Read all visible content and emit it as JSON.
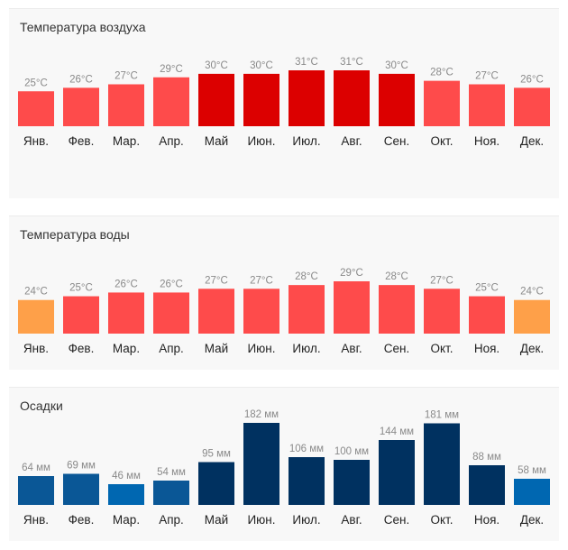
{
  "colors": {
    "hot": "#fe4b4b",
    "very_hot": "#dc0000",
    "warm": "#fea049",
    "rain_low": "#0067b1",
    "rain_mid": "#0a5796",
    "rain_high": "#003160"
  },
  "chart_data": [
    {
      "type": "bar",
      "title": "Температура воздуха",
      "categories": [
        "Янв.",
        "Фев.",
        "Мар.",
        "Апр.",
        "Май",
        "Июн.",
        "Июл.",
        "Авг.",
        "Сен.",
        "Окт.",
        "Ноя.",
        "Дек."
      ],
      "values": [
        25,
        26,
        27,
        29,
        30,
        30,
        31,
        31,
        30,
        28,
        27,
        26
      ],
      "value_labels": [
        "25°C",
        "26°C",
        "27°C",
        "29°C",
        "30°C",
        "30°C",
        "31°C",
        "31°C",
        "30°C",
        "28°C",
        "27°C",
        "26°C"
      ],
      "unit": "°C",
      "ylim": [
        15,
        31
      ],
      "bar_colors": [
        "#fe4b4b",
        "#fe4b4b",
        "#fe4b4b",
        "#fe4b4b",
        "#dc0000",
        "#dc0000",
        "#dc0000",
        "#dc0000",
        "#dc0000",
        "#fe4b4b",
        "#fe4b4b",
        "#fe4b4b"
      ]
    },
    {
      "type": "bar",
      "title": "Температура воды",
      "categories": [
        "Янв.",
        "Фев.",
        "Мар.",
        "Апр.",
        "Май",
        "Июн.",
        "Июл.",
        "Авг.",
        "Сен.",
        "Окт.",
        "Ноя.",
        "Дек."
      ],
      "values": [
        24,
        25,
        26,
        26,
        27,
        27,
        28,
        29,
        28,
        27,
        25,
        24
      ],
      "value_labels": [
        "24°C",
        "25°C",
        "26°C",
        "26°C",
        "27°C",
        "27°C",
        "28°C",
        "29°C",
        "28°C",
        "27°C",
        "25°C",
        "24°C"
      ],
      "unit": "°C",
      "ylim": [
        15,
        29
      ],
      "bar_colors": [
        "#fea049",
        "#fe4b4b",
        "#fe4b4b",
        "#fe4b4b",
        "#fe4b4b",
        "#fe4b4b",
        "#fe4b4b",
        "#fe4b4b",
        "#fe4b4b",
        "#fe4b4b",
        "#fe4b4b",
        "#fea049"
      ]
    },
    {
      "type": "bar",
      "title": "Осадки",
      "categories": [
        "Янв.",
        "Фев.",
        "Мар.",
        "Апр.",
        "Май",
        "Июн.",
        "Июл.",
        "Авг.",
        "Сен.",
        "Окт.",
        "Ноя.",
        "Дек."
      ],
      "values": [
        64,
        69,
        46,
        54,
        95,
        182,
        106,
        100,
        144,
        181,
        88,
        58
      ],
      "value_labels": [
        "64 мм",
        "69 мм",
        "46 мм",
        "54 мм",
        "95 мм",
        "182 мм",
        "106 мм",
        "100 мм",
        "144 мм",
        "181 мм",
        "88 мм",
        "58 мм"
      ],
      "unit": "мм",
      "ylim": [
        0,
        182
      ],
      "bar_colors": [
        "#0a5796",
        "#0a5796",
        "#0067b1",
        "#0a5796",
        "#003160",
        "#003160",
        "#003160",
        "#003160",
        "#003160",
        "#003160",
        "#003160",
        "#0067b1"
      ]
    }
  ]
}
